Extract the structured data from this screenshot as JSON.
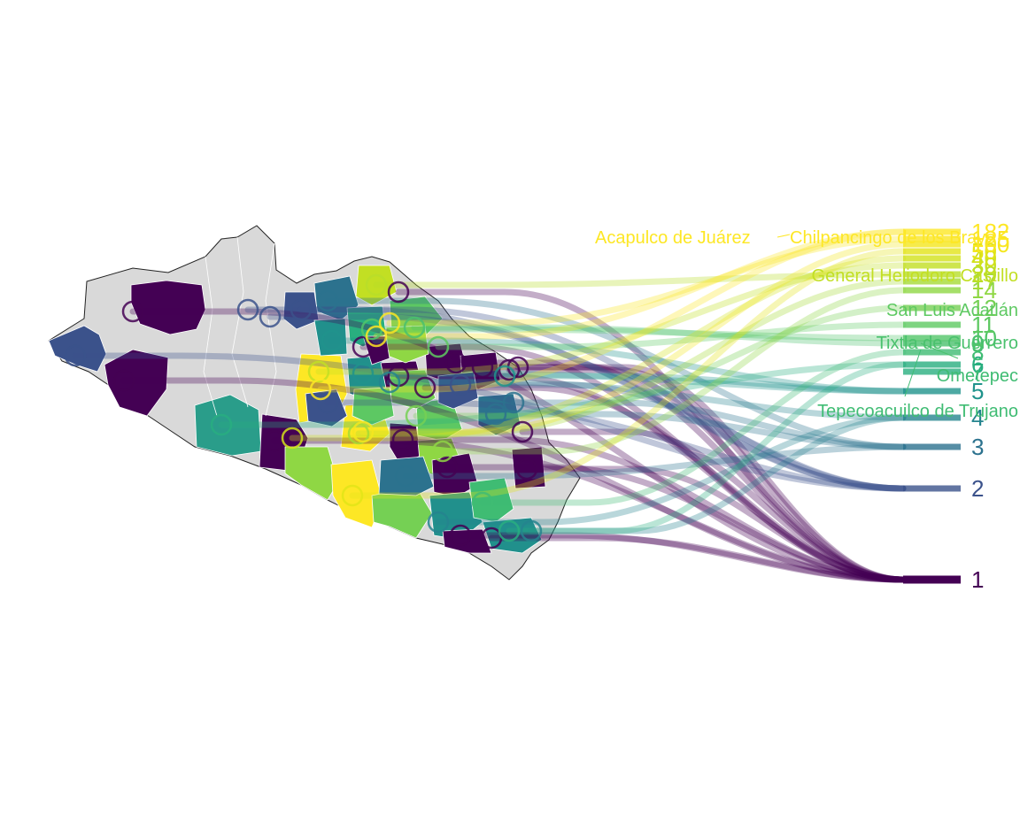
{
  "colors": {
    "viridis": [
      "#440154",
      "#3b528b",
      "#21908c",
      "#5dc863",
      "#fde725"
    ],
    "gray_fill": "#d9d9d9",
    "outline": "#222222",
    "background": "#ffffff"
  },
  "ranks": [
    {
      "label": "1",
      "color": "#440154"
    },
    {
      "label": "2",
      "color": "#3b528b"
    },
    {
      "label": "3",
      "color": "#2c728e"
    },
    {
      "label": "4",
      "color": "#25848e"
    },
    {
      "label": "5",
      "color": "#20938c"
    },
    {
      "label": "6",
      "color": "#28ae80"
    },
    {
      "label": "7",
      "color": "#29af7f"
    },
    {
      "label": "8",
      "color": "#3fbc73"
    },
    {
      "label": "9",
      "color": "#4ac16d"
    },
    {
      "label": "10",
      "color": "#52c569"
    },
    {
      "label": "11",
      "color": "#5ec962"
    },
    {
      "label": "12",
      "color": "#75d054"
    },
    {
      "label": "14",
      "color": "#8fd744"
    },
    {
      "label": "17",
      "color": "#a5db36"
    },
    {
      "label": "20",
      "color": "#b8de29"
    },
    {
      "label": "30",
      "color": "#c2df23"
    },
    {
      "label": "40",
      "color": "#d2e21b"
    },
    {
      "label": "50",
      "color": "#e2e418"
    },
    {
      "label": "100",
      "color": "#f4e61e"
    },
    {
      "label": "125",
      "color": "#fae622"
    },
    {
      "label": "182",
      "color": "#fde725"
    }
  ],
  "municipality_labels": [
    {
      "name": "Acapulco de Juárez",
      "color": "#fde725"
    },
    {
      "name": "Chilpancingo de los Bravo",
      "color": "#fde725"
    },
    {
      "name": "General Heliodoro Castillo",
      "color": "#c2df23"
    },
    {
      "name": "San Luis Acatlán",
      "color": "#5ec962"
    },
    {
      "name": "Tixtla de Guerrero",
      "color": "#4ac16d"
    },
    {
      "name": "Ometepec",
      "color": "#3fbc73"
    },
    {
      "name": "Tepecoacuilco de Trujano",
      "color": "#3fbc73"
    }
  ]
}
